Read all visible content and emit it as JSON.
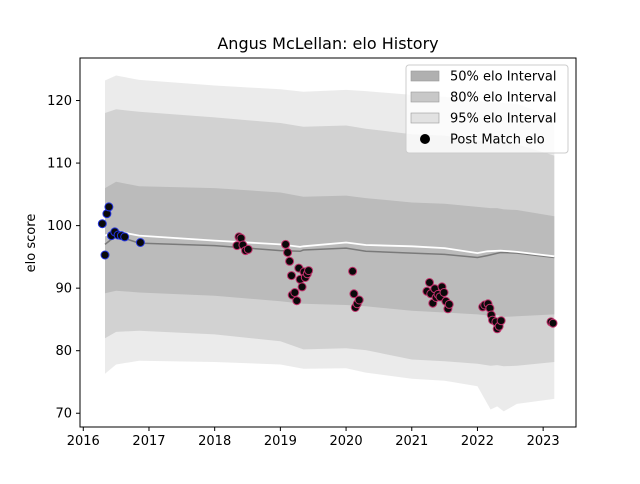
{
  "chart_data": {
    "type": "line",
    "title": "Angus McLellan: elo History",
    "xlabel": "",
    "ylabel": "elo score",
    "xlim": [
      2015.95,
      2023.5
    ],
    "ylim": [
      67.8,
      126.8
    ],
    "x_ticks": [
      2016,
      2017,
      2018,
      2019,
      2020,
      2021,
      2022,
      2023
    ],
    "y_ticks": [
      70,
      80,
      90,
      100,
      110,
      120
    ],
    "grid": false,
    "legend_position": "top-right",
    "legend": [
      {
        "label": "50% elo Interval",
        "color": "#b0b0b0",
        "kind": "patch"
      },
      {
        "label": "80% elo Interval",
        "color": "#c8c8c8",
        "kind": "patch"
      },
      {
        "label": "95% elo Interval",
        "color": "#e2e2e2",
        "kind": "patch"
      },
      {
        "label": "Post Match elo",
        "color": "#000000",
        "kind": "marker"
      }
    ],
    "colors": {
      "band50": "#b3b3b3",
      "band80": "#c9c9c9",
      "band95": "#e4e4e4",
      "mean_line": "#7a7a7a",
      "white_line": "#ffffff",
      "point_fill": "#0a0a0a",
      "point_edge_blue": "#2233dd",
      "point_edge_pink": "#c0306a"
    },
    "series": [
      {
        "name": "95% elo Interval",
        "x": [
          2016.33,
          2016.5,
          2016.85,
          2018.0,
          2019.0,
          2019.35,
          2020.0,
          2020.3,
          2021.0,
          2021.5,
          2022.0,
          2022.2,
          2022.3,
          2022.4,
          2022.6,
          2023.17
        ],
        "upper": [
          123.2,
          124.0,
          123.3,
          122.4,
          121.8,
          121.4,
          121.7,
          121.5,
          120.9,
          120.6,
          120.0,
          119.6,
          119.7,
          119.6,
          119.5,
          117.3
        ],
        "lower": [
          76.3,
          77.8,
          78.4,
          78.2,
          77.8,
          77.1,
          77.2,
          76.5,
          75.5,
          75.2,
          74.3,
          70.6,
          71.1,
          70.3,
          71.5,
          72.3
        ]
      },
      {
        "name": "80% elo Interval",
        "x": [
          2016.33,
          2016.5,
          2016.85,
          2018.0,
          2019.0,
          2019.35,
          2020.0,
          2020.3,
          2021.0,
          2021.5,
          2022.0,
          2022.2,
          2022.3,
          2022.4,
          2022.6,
          2023.17
        ],
        "upper": [
          118.0,
          118.6,
          118.2,
          117.3,
          116.4,
          115.8,
          116.0,
          115.5,
          114.6,
          114.4,
          113.6,
          113.2,
          113.3,
          113.2,
          113.0,
          111.2
        ],
        "lower": [
          82.0,
          83.0,
          83.2,
          82.6,
          81.5,
          80.2,
          80.4,
          80.1,
          78.6,
          78.3,
          77.9,
          77.6,
          77.7,
          77.5,
          77.6,
          78.2
        ]
      },
      {
        "name": "50% elo Interval",
        "x": [
          2016.33,
          2016.5,
          2016.85,
          2018.0,
          2019.0,
          2019.35,
          2020.0,
          2020.3,
          2021.0,
          2021.5,
          2022.0,
          2022.2,
          2022.3,
          2022.4,
          2022.6,
          2023.17
        ],
        "upper": [
          106.0,
          107.0,
          106.3,
          106.0,
          105.3,
          104.6,
          104.8,
          104.4,
          103.7,
          103.5,
          103.0,
          102.8,
          102.8,
          102.6,
          102.5,
          101.5
        ],
        "lower": [
          89.2,
          89.6,
          89.3,
          88.8,
          87.9,
          87.5,
          87.3,
          87.1,
          86.4,
          86.1,
          85.8,
          85.6,
          85.7,
          85.4,
          85.5,
          85.8
        ]
      },
      {
        "name": "mean",
        "x": [
          2016.33,
          2016.5,
          2016.85,
          2018.0,
          2019.0,
          2019.3,
          2019.35,
          2020.0,
          2020.3,
          2021.0,
          2021.5,
          2022.0,
          2022.15,
          2022.35,
          2022.6,
          2023.17
        ],
        "y": [
          97.0,
          98.4,
          97.2,
          96.8,
          96.0,
          95.9,
          96.1,
          96.4,
          95.9,
          95.6,
          95.4,
          94.9,
          95.2,
          95.7,
          95.6,
          94.9
        ]
      },
      {
        "name": "upper mean",
        "x": [
          2016.33,
          2016.5,
          2016.85,
          2018.0,
          2019.0,
          2019.3,
          2019.35,
          2020.0,
          2020.3,
          2021.0,
          2021.5,
          2022.0,
          2022.15,
          2022.35,
          2022.6,
          2023.17
        ],
        "y": [
          98.4,
          99.1,
          98.4,
          97.6,
          97.0,
          96.6,
          96.7,
          97.3,
          96.9,
          96.7,
          96.4,
          95.6,
          95.9,
          96.0,
          95.8,
          95.1
        ]
      },
      {
        "name": "Post Match elo",
        "points": [
          [
            2016.29,
            100.3
          ],
          [
            2016.33,
            95.3
          ],
          [
            2016.36,
            101.9
          ],
          [
            2016.39,
            103.0
          ],
          [
            2016.43,
            98.4
          ],
          [
            2016.48,
            99.0
          ],
          [
            2016.53,
            98.5
          ],
          [
            2016.58,
            98.4
          ],
          [
            2016.63,
            98.2
          ],
          [
            2016.87,
            97.3
          ],
          [
            2018.34,
            96.8
          ],
          [
            2018.37,
            98.2
          ],
          [
            2018.4,
            98.0
          ],
          [
            2018.43,
            96.9
          ],
          [
            2018.47,
            96.0
          ],
          [
            2018.51,
            96.2
          ],
          [
            2019.08,
            97.0
          ],
          [
            2019.11,
            95.7
          ],
          [
            2019.14,
            94.3
          ],
          [
            2019.17,
            92.0
          ],
          [
            2019.18,
            88.9
          ],
          [
            2019.22,
            89.3
          ],
          [
            2019.25,
            88.0
          ],
          [
            2019.28,
            93.2
          ],
          [
            2019.3,
            91.4
          ],
          [
            2019.33,
            90.2
          ],
          [
            2019.36,
            92.6
          ],
          [
            2019.38,
            91.7
          ],
          [
            2019.41,
            92.3
          ],
          [
            2019.43,
            92.8
          ],
          [
            2020.1,
            92.7
          ],
          [
            2020.12,
            89.1
          ],
          [
            2020.14,
            86.9
          ],
          [
            2020.17,
            87.5
          ],
          [
            2020.2,
            88.1
          ],
          [
            2021.23,
            89.5
          ],
          [
            2021.27,
            90.9
          ],
          [
            2021.29,
            89.1
          ],
          [
            2021.32,
            87.6
          ],
          [
            2021.35,
            89.9
          ],
          [
            2021.37,
            88.5
          ],
          [
            2021.4,
            89.0
          ],
          [
            2021.43,
            88.6
          ],
          [
            2021.46,
            90.2
          ],
          [
            2021.49,
            89.3
          ],
          [
            2021.52,
            87.9
          ],
          [
            2021.55,
            86.7
          ],
          [
            2021.57,
            87.4
          ],
          [
            2022.08,
            87.0
          ],
          [
            2022.11,
            87.3
          ],
          [
            2022.16,
            87.5
          ],
          [
            2022.19,
            86.8
          ],
          [
            2022.21,
            85.7
          ],
          [
            2022.23,
            84.9
          ],
          [
            2022.28,
            84.6
          ],
          [
            2022.3,
            83.5
          ],
          [
            2022.33,
            83.9
          ],
          [
            2022.36,
            84.8
          ],
          [
            2023.12,
            84.6
          ],
          [
            2023.15,
            84.4
          ]
        ]
      }
    ]
  }
}
